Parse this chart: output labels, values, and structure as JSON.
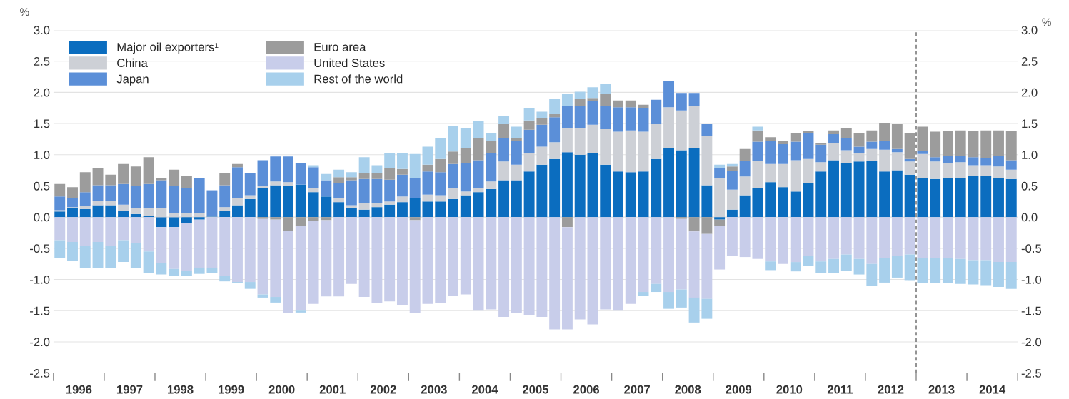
{
  "chart_data": {
    "type": "bar",
    "stacked": true,
    "ylabel": "%",
    "y2label": "%",
    "x": [
      1996.125,
      1996.375,
      1996.625,
      1996.875,
      1997.125,
      1997.375,
      1997.625,
      1997.875,
      1998.125,
      1998.375,
      1998.625,
      1998.875,
      1999.125,
      1999.375,
      1999.625,
      1999.875,
      2000.125,
      2000.375,
      2000.625,
      2000.875,
      2001.125,
      2001.375,
      2001.625,
      2001.875,
      2002.125,
      2002.375,
      2002.625,
      2002.875,
      2003.125,
      2003.375,
      2003.625,
      2003.875,
      2004.125,
      2004.375,
      2004.625,
      2004.875,
      2005.125,
      2005.375,
      2005.625,
      2005.875,
      2006.125,
      2006.375,
      2006.625,
      2006.875,
      2007.125,
      2007.375,
      2007.625,
      2007.875,
      2008.125,
      2008.375,
      2008.625,
      2008.875,
      2009.125,
      2009.375,
      2009.625,
      2009.875,
      2010.125,
      2010.375,
      2010.625,
      2010.875,
      2011.125,
      2011.375,
      2011.625,
      2011.875,
      2012.125,
      2012.375,
      2012.625,
      2012.875,
      2013.125,
      2013.375,
      2013.625,
      2013.875,
      2014.125,
      2014.375,
      2014.625,
      2014.875
    ],
    "series": [
      {
        "name": "Major oil exporters¹",
        "color": "#0b6dbf",
        "values": [
          0.09,
          0.14,
          0.13,
          0.19,
          0.19,
          0.1,
          0.05,
          0.02,
          -0.16,
          -0.16,
          -0.1,
          -0.04,
          0.01,
          0.1,
          0.19,
          0.29,
          0.46,
          0.51,
          0.5,
          0.52,
          0.4,
          0.33,
          0.24,
          0.14,
          0.12,
          0.16,
          0.2,
          0.24,
          0.3,
          0.25,
          0.25,
          0.29,
          0.35,
          0.4,
          0.45,
          0.59,
          0.59,
          0.73,
          0.84,
          0.93,
          1.04,
          1.0,
          1.02,
          0.84,
          0.73,
          0.72,
          0.73,
          0.93,
          1.11,
          1.07,
          1.11,
          0.51,
          -0.04,
          0.12,
          0.35,
          0.46,
          0.56,
          0.48,
          0.41,
          0.55,
          0.73,
          0.91,
          0.87,
          0.89,
          0.9,
          0.73,
          0.75,
          0.68,
          0.63,
          0.61,
          0.63,
          0.63,
          0.66,
          0.66,
          0.63,
          0.61
        ]
      },
      {
        "name": "China",
        "color": "#cdd0d6",
        "values": [
          0.02,
          0.02,
          0.05,
          0.07,
          0.07,
          0.1,
          0.1,
          0.12,
          0.15,
          0.07,
          0.06,
          0.07,
          0.01,
          0.06,
          0.12,
          0.06,
          0.04,
          0.06,
          0.06,
          0.0,
          0.06,
          0.0,
          0.06,
          0.05,
          0.1,
          0.06,
          0.05,
          0.09,
          0.0,
          0.11,
          0.1,
          0.17,
          0.06,
          0.06,
          0.12,
          0.3,
          0.25,
          0.3,
          0.29,
          0.27,
          0.38,
          0.42,
          0.46,
          0.57,
          0.64,
          0.67,
          0.64,
          0.56,
          0.65,
          0.64,
          0.67,
          0.79,
          0.63,
          0.32,
          0.3,
          0.44,
          0.29,
          0.37,
          0.5,
          0.38,
          0.15,
          0.28,
          0.2,
          0.13,
          0.19,
          0.35,
          0.29,
          0.21,
          0.38,
          0.28,
          0.24,
          0.25,
          0.17,
          0.17,
          0.18,
          0.15
        ]
      },
      {
        "name": "Japan",
        "color": "#5b8fd8",
        "values": [
          0.22,
          0.15,
          0.22,
          0.25,
          0.25,
          0.33,
          0.35,
          0.39,
          0.44,
          0.43,
          0.4,
          0.55,
          0.41,
          0.35,
          0.49,
          0.35,
          0.41,
          0.4,
          0.41,
          0.34,
          0.34,
          0.26,
          0.24,
          0.4,
          0.39,
          0.39,
          0.35,
          0.35,
          0.33,
          0.37,
          0.37,
          0.39,
          0.45,
          0.45,
          0.45,
          0.37,
          0.38,
          0.37,
          0.35,
          0.4,
          0.36,
          0.36,
          0.38,
          0.37,
          0.39,
          0.37,
          0.38,
          0.39,
          0.42,
          0.28,
          0.21,
          0.19,
          0.15,
          0.3,
          0.25,
          0.31,
          0.37,
          0.32,
          0.3,
          0.42,
          0.28,
          0.14,
          0.19,
          0.11,
          0.12,
          0.14,
          0.05,
          0.04,
          0.05,
          0.07,
          0.11,
          0.1,
          0.13,
          0.12,
          0.17,
          0.15
        ]
      },
      {
        "name": "Euro area",
        "color": "#9c9c9c",
        "values": [
          0.2,
          0.17,
          0.32,
          0.27,
          0.17,
          0.32,
          0.31,
          0.43,
          0.03,
          0.26,
          0.2,
          0.01,
          0.0,
          0.19,
          0.05,
          0.0,
          -0.03,
          -0.04,
          -0.22,
          -0.14,
          -0.06,
          -0.05,
          0.1,
          0.05,
          0.09,
          0.09,
          0.19,
          0.09,
          -0.05,
          0.11,
          0.21,
          0.2,
          0.25,
          0.35,
          0.2,
          0.23,
          0.04,
          0.15,
          0.1,
          0.05,
          -0.16,
          0.11,
          0.05,
          0.19,
          0.11,
          0.11,
          0.05,
          0.0,
          0.0,
          -0.03,
          -0.23,
          -0.27,
          -0.1,
          0.07,
          0.19,
          0.18,
          0.06,
          0.05,
          0.14,
          0.03,
          0.03,
          0.06,
          0.17,
          0.21,
          0.18,
          0.28,
          0.4,
          0.42,
          0.39,
          0.41,
          0.4,
          0.41,
          0.42,
          0.44,
          0.41,
          0.47
        ]
      },
      {
        "name": "United States",
        "color": "#c8cdea",
        "values": [
          -0.37,
          -0.4,
          -0.46,
          -0.4,
          -0.46,
          -0.37,
          -0.42,
          -0.55,
          -0.58,
          -0.67,
          -0.76,
          -0.77,
          -0.81,
          -0.94,
          -1.04,
          -1.04,
          -1.21,
          -1.24,
          -1.32,
          -1.36,
          -1.33,
          -1.22,
          -1.27,
          -1.07,
          -1.28,
          -1.38,
          -1.35,
          -1.41,
          -1.49,
          -1.39,
          -1.37,
          -1.26,
          -1.24,
          -1.5,
          -1.48,
          -1.6,
          -1.54,
          -1.57,
          -1.6,
          -1.8,
          -1.64,
          -1.64,
          -1.72,
          -1.48,
          -1.5,
          -1.39,
          -1.2,
          -1.07,
          -1.2,
          -1.13,
          -1.06,
          -1.04,
          -0.7,
          -0.62,
          -0.64,
          -0.67,
          -0.71,
          -0.75,
          -0.72,
          -0.62,
          -0.71,
          -0.67,
          -0.6,
          -0.67,
          -0.75,
          -0.66,
          -0.62,
          -0.6,
          -0.66,
          -0.66,
          -0.66,
          -0.67,
          -0.69,
          -0.69,
          -0.72,
          -0.72
        ]
      },
      {
        "name": "Rest of the world",
        "color": "#a8d0ec",
        "values": [
          -0.29,
          -0.3,
          -0.35,
          -0.41,
          -0.35,
          -0.35,
          -0.39,
          -0.35,
          -0.18,
          -0.11,
          -0.08,
          -0.1,
          -0.09,
          -0.09,
          -0.02,
          -0.11,
          -0.05,
          -0.09,
          0.0,
          -0.03,
          0.03,
          0.1,
          0.12,
          0.08,
          0.26,
          0.13,
          0.24,
          0.25,
          0.38,
          0.29,
          0.33,
          0.41,
          0.32,
          0.28,
          0.12,
          0.13,
          0.19,
          0.2,
          0.11,
          0.25,
          0.19,
          0.12,
          0.17,
          0.17,
          0.0,
          0.0,
          -0.06,
          -0.13,
          -0.27,
          -0.29,
          -0.4,
          -0.32,
          0.06,
          0.04,
          0.0,
          0.06,
          -0.14,
          0.0,
          -0.15,
          -0.16,
          -0.19,
          -0.23,
          -0.26,
          -0.25,
          -0.35,
          -0.39,
          -0.35,
          -0.41,
          -0.39,
          -0.39,
          -0.39,
          -0.4,
          -0.39,
          -0.4,
          -0.4,
          -0.43
        ]
      }
    ],
    "xlim": [
      1996,
      2015
    ],
    "xticks": [
      {
        "value": 1996,
        "label": null
      },
      {
        "value": 1996.5,
        "label": "1996"
      },
      {
        "value": 1997,
        "label": null
      },
      {
        "value": 1997.5,
        "label": "1997"
      },
      {
        "value": 1998,
        "label": null
      },
      {
        "value": 1998.5,
        "label": "1998"
      },
      {
        "value": 1999,
        "label": null
      },
      {
        "value": 1999.5,
        "label": "1999"
      },
      {
        "value": 2000,
        "label": null
      },
      {
        "value": 2000.5,
        "label": "2000"
      },
      {
        "value": 2001,
        "label": null
      },
      {
        "value": 2001.5,
        "label": "2001"
      },
      {
        "value": 2002,
        "label": null
      },
      {
        "value": 2002.5,
        "label": "2002"
      },
      {
        "value": 2003,
        "label": null
      },
      {
        "value": 2003.5,
        "label": "2003"
      },
      {
        "value": 2004,
        "label": null
      },
      {
        "value": 2004.5,
        "label": "2004"
      },
      {
        "value": 2005,
        "label": null
      },
      {
        "value": 2005.5,
        "label": "2005"
      },
      {
        "value": 2006,
        "label": null
      },
      {
        "value": 2006.5,
        "label": "2006"
      },
      {
        "value": 2007,
        "label": null
      },
      {
        "value": 2007.5,
        "label": "2007"
      },
      {
        "value": 2008,
        "label": null
      },
      {
        "value": 2008.5,
        "label": "2008"
      },
      {
        "value": 2009,
        "label": null
      },
      {
        "value": 2009.5,
        "label": "2009"
      },
      {
        "value": 2010,
        "label": null
      },
      {
        "value": 2010.5,
        "label": "2010"
      },
      {
        "value": 2011,
        "label": null
      },
      {
        "value": 2011.5,
        "label": "2011"
      },
      {
        "value": 2012,
        "label": null
      },
      {
        "value": 2012.5,
        "label": "2012"
      },
      {
        "value": 2013,
        "label": null
      },
      {
        "value": 2013.5,
        "label": "2013"
      },
      {
        "value": 2014,
        "label": null
      },
      {
        "value": 2014.5,
        "label": "2014"
      },
      {
        "value": 2015,
        "label": null
      }
    ],
    "ylim": [
      -2.5,
      3.0
    ],
    "yticks": [
      {
        "value": -2.5,
        "label": "-2.5"
      },
      {
        "value": -2.0,
        "label": "-2.0"
      },
      {
        "value": -1.5,
        "label": "-1.5"
      },
      {
        "value": -1.0,
        "label": "-1.0"
      },
      {
        "value": -0.5,
        "label": "-0.5"
      },
      {
        "value": 0.0,
        "label": "0.0"
      },
      {
        "value": 0.5,
        "label": "0.5"
      },
      {
        "value": 1.0,
        "label": "1.0"
      },
      {
        "value": 1.5,
        "label": "1.5"
      },
      {
        "value": 2.0,
        "label": "2.0"
      },
      {
        "value": 2.5,
        "label": "2.5"
      },
      {
        "value": 3.0,
        "label": "3.0"
      }
    ],
    "y2lim": [
      -2.5,
      3.0
    ],
    "y2ticks": [
      {
        "value": -2.5,
        "label": "-2.5"
      },
      {
        "value": -2.0,
        "label": "-2.0"
      },
      {
        "value": -1.5,
        "label": "-1.5"
      },
      {
        "value": -1.0,
        "label": "-1.0"
      },
      {
        "value": -0.5,
        "label": "-0.5"
      },
      {
        "value": 0.0,
        "label": "0.0"
      },
      {
        "value": 0.5,
        "label": "0.5"
      },
      {
        "value": 1.0,
        "label": "1.0"
      },
      {
        "value": 1.5,
        "label": "1.5"
      },
      {
        "value": 2.0,
        "label": "2.0"
      },
      {
        "value": 2.5,
        "label": "2.5"
      },
      {
        "value": 3.0,
        "label": "3.0"
      }
    ],
    "ref_lines": [
      {
        "axis": "x",
        "value": 2013,
        "color": "#555555",
        "line_style": "dashed"
      }
    ],
    "grid": "y",
    "legend": "top left"
  }
}
